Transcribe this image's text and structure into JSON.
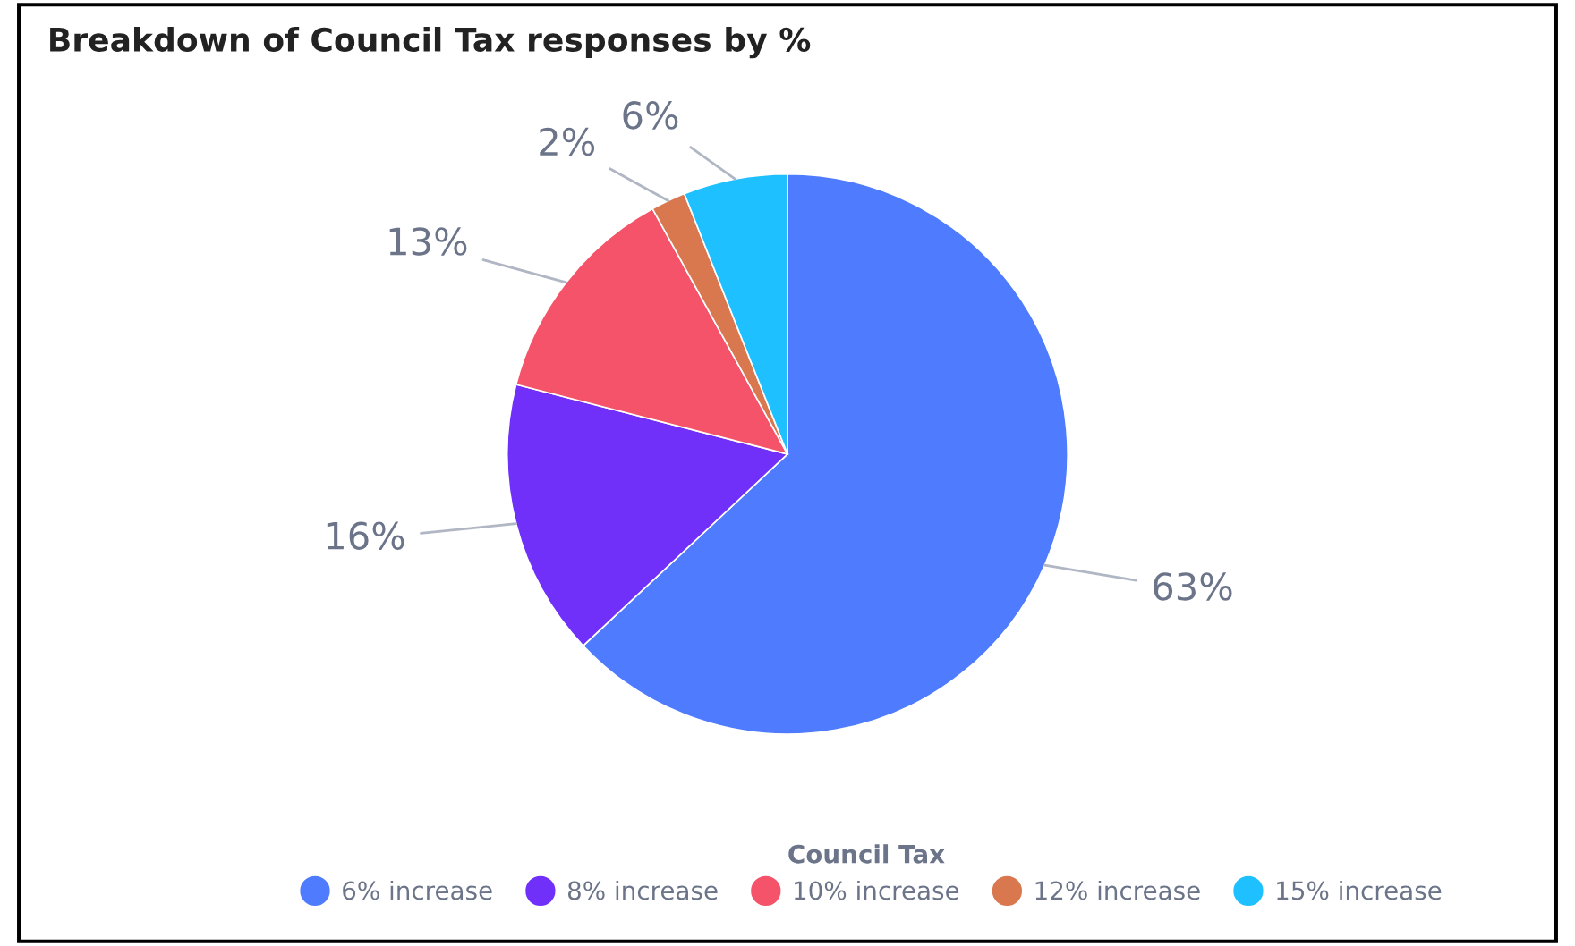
{
  "chart_data": {
    "type": "pie",
    "title": "Breakdown of Council Tax responses by %",
    "categories": [
      "6% increase",
      "8% increase",
      "10% increase",
      "12% increase",
      "15% increase"
    ],
    "values": [
      63,
      16,
      13,
      2,
      6
    ],
    "value_labels": [
      "63%",
      "16%",
      "13%",
      "2%",
      "6%"
    ],
    "colors": [
      "#4f7cff",
      "#7030fa",
      "#f5536a",
      "#d9784f",
      "#1ec0ff"
    ],
    "legend_title": "Council Tax",
    "legend": "bottom"
  }
}
